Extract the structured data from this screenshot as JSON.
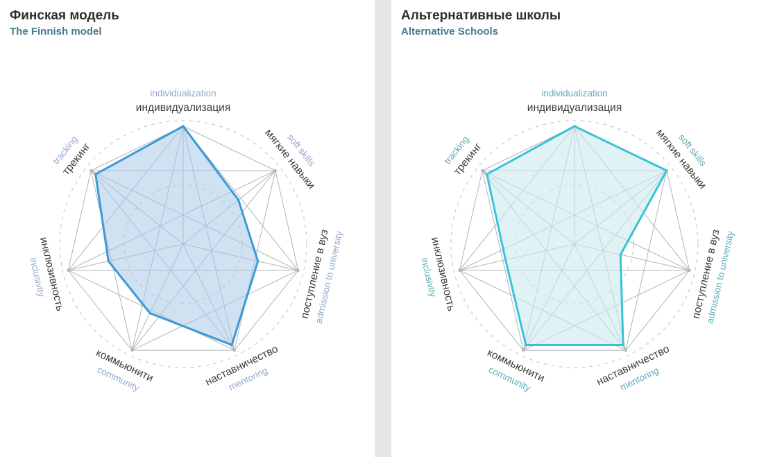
{
  "page": {
    "background": "#e6e6e6",
    "panel_background": "#ffffff"
  },
  "chart_data": [
    {
      "type": "radar",
      "title": "Финская модель",
      "subtitle": "The Finnish model",
      "max": 10,
      "grid": {
        "rings": [
          5,
          10
        ],
        "ring_style": "dashed",
        "mesh": "complete-graph",
        "legend": "none"
      },
      "colors": {
        "stroke": "#3a99d8",
        "fill": "rgba(170,201,232,0.55)",
        "axis_en": "#92a9c9",
        "axis_ru": "#3b3b3b",
        "mesh": "#aeb4ba",
        "ring": "#cbcfd3"
      },
      "axes": [
        {
          "ru": "индивидуализация",
          "en": "individualization"
        },
        {
          "ru": "мягкие навыки",
          "en": "soft skills"
        },
        {
          "ru": "поступление в вуз",
          "en": "admission to university"
        },
        {
          "ru": "наставничество",
          "en": "mentoring"
        },
        {
          "ru": "коммьюнити",
          "en": "community"
        },
        {
          "ru": "инклюзивность",
          "en": "inclusivity"
        },
        {
          "ru": "трекинг",
          "en": "tracking"
        }
      ],
      "values": [
        10,
        6,
        6.5,
        9.5,
        6.5,
        6.5,
        9.5
      ]
    },
    {
      "type": "radar",
      "title": "Альтернативные школы",
      "subtitle": "Alternative Schools",
      "max": 10,
      "grid": {
        "rings": [
          5,
          10
        ],
        "ring_style": "dashed",
        "mesh": "complete-graph",
        "legend": "none"
      },
      "colors": {
        "stroke": "#38c3d8",
        "fill": "rgba(205,233,239,0.6)",
        "axis_en": "#5aacba",
        "axis_ru": "#3b3b3b",
        "mesh": "#aeb4ba",
        "ring": "#cbcfd3"
      },
      "axes": [
        {
          "ru": "индивидуализация",
          "en": "individualization"
        },
        {
          "ru": "мягкие навыки",
          "en": "soft skills"
        },
        {
          "ru": "поступление в вуз",
          "en": "admission to university"
        },
        {
          "ru": "наставничество",
          "en": "mentoring"
        },
        {
          "ru": "коммьюнити",
          "en": "community"
        },
        {
          "ru": "инклюзивность",
          "en": "inclusivity"
        },
        {
          "ru": "трекинг",
          "en": "tracking"
        }
      ],
      "values": [
        10,
        10,
        4,
        9.5,
        9.5,
        6,
        9.5
      ]
    }
  ]
}
